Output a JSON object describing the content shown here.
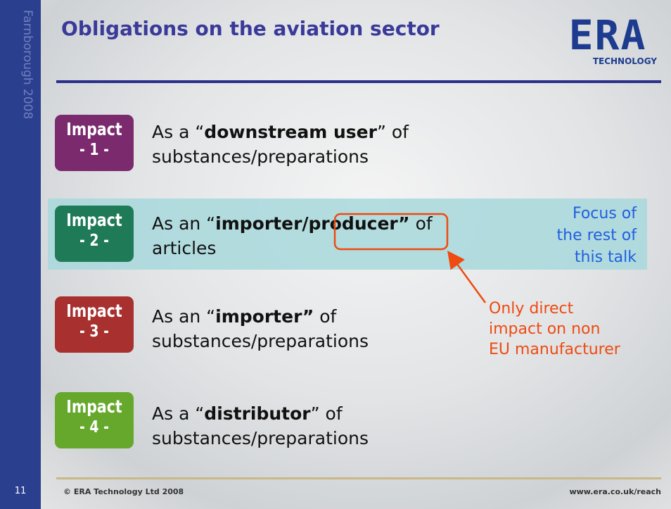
{
  "sidebar": {
    "event": "Farnborough 2008",
    "page_number": "11"
  },
  "header": {
    "title": "Obligations on the aviation sector",
    "logo": {
      "main": "ERA",
      "sub": "TECHNOLOGY"
    }
  },
  "impacts": [
    {
      "badge": "Impact",
      "number": "- 1 -",
      "text_before": "As a “",
      "text_bold": "downstream user",
      "text_after": "” of",
      "line2": "substances/preparations"
    },
    {
      "badge": "Impact",
      "number": "- 2 -",
      "text_before": "As an “",
      "text_bold": "importer/producer”",
      "text_after": " of",
      "line2": "articles"
    },
    {
      "badge": "Impact",
      "number": "- 3 -",
      "text_before": "As an “",
      "text_bold": "importer”",
      "text_after": " of",
      "line2": "substances/preparations"
    },
    {
      "badge": "Impact",
      "number": "- 4 -",
      "text_before": "As a “",
      "text_bold": "distributor",
      "text_after": "” of",
      "line2": "substances/preparations"
    }
  ],
  "callouts": {
    "focus": [
      "Focus of",
      "the rest of",
      "this talk"
    ],
    "note": [
      "Only direct",
      "impact on non",
      "EU manufacturer"
    ]
  },
  "footer": {
    "copyright": "© ERA Technology Ltd 2008",
    "url": "www.era.co.uk/reach"
  }
}
